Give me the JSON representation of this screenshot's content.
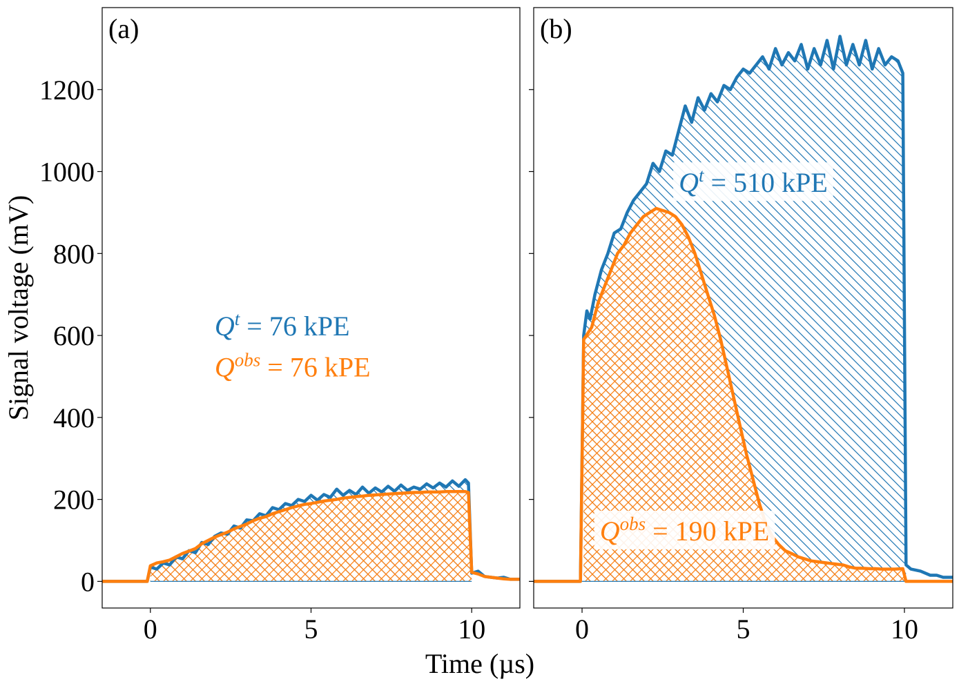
{
  "colors": {
    "true_signal": "#1f77b4",
    "observed_signal": "#ff7f0e",
    "axis": "#000000"
  },
  "figure": {
    "shared_xlabel": "Time (µs)",
    "shared_ylabel": "Signal voltage (mV)"
  },
  "chart_data": [
    {
      "type": "line",
      "panel_label": "(a)",
      "xlim": [
        -1.5,
        11.5
      ],
      "ylim": [
        -65,
        1400
      ],
      "xticks": [
        0,
        5,
        10
      ],
      "yticks": [
        0,
        200,
        400,
        600,
        800,
        1000,
        1200
      ],
      "ytick_labels_visible": true,
      "annotations": [
        {
          "prefix": "Q",
          "superscript": "t",
          "text": " = 76 kPE",
          "color": "#1f77b4",
          "x": 2.0,
          "y": 600,
          "box": false
        },
        {
          "prefix": "Q",
          "superscript": "obs",
          "text": " = 76 kPE",
          "color": "#ff7f0e",
          "x": 2.0,
          "y": 500,
          "box": false
        }
      ],
      "series": [
        {
          "name": "Q^t",
          "color": "#1f77b4",
          "hatch": "\\\\",
          "x": [
            -1.5,
            -0.1,
            0,
            0.2,
            0.4,
            0.6,
            0.8,
            1,
            1.2,
            1.4,
            1.6,
            1.8,
            2,
            2.2,
            2.4,
            2.6,
            2.8,
            3,
            3.2,
            3.4,
            3.6,
            3.8,
            4,
            4.2,
            4.4,
            4.6,
            4.8,
            5,
            5.2,
            5.4,
            5.6,
            5.8,
            6,
            6.2,
            6.4,
            6.6,
            6.8,
            7,
            7.2,
            7.4,
            7.6,
            7.8,
            8,
            8.2,
            8.4,
            8.6,
            8.8,
            9,
            9.2,
            9.4,
            9.6,
            9.8,
            9.9,
            10,
            10.2,
            10.4,
            10.6,
            10.8,
            11,
            11.2,
            11.5
          ],
          "y": [
            0,
            0,
            35,
            30,
            45,
            40,
            60,
            55,
            75,
            70,
            95,
            90,
            110,
            118,
            115,
            135,
            130,
            150,
            148,
            165,
            160,
            180,
            175,
            190,
            185,
            200,
            195,
            210,
            198,
            212,
            205,
            225,
            210,
            222,
            212,
            230,
            215,
            228,
            218,
            232,
            220,
            235,
            222,
            230,
            225,
            238,
            228,
            240,
            230,
            245,
            232,
            248,
            240,
            20,
            25,
            12,
            10,
            8,
            10,
            5,
            5
          ]
        },
        {
          "name": "Q^obs",
          "color": "#ff7f0e",
          "hatch": "xx",
          "x": [
            -1.5,
            -0.1,
            0,
            0.2,
            0.4,
            0.6,
            0.8,
            1,
            1.2,
            1.4,
            1.6,
            1.8,
            2,
            2.2,
            2.4,
            2.6,
            2.8,
            3,
            3.2,
            3.4,
            3.6,
            3.8,
            4,
            4.2,
            4.4,
            4.6,
            4.8,
            5,
            5.2,
            5.4,
            5.6,
            5.8,
            6,
            6.2,
            6.4,
            6.6,
            6.8,
            7,
            7.2,
            7.4,
            7.6,
            7.8,
            8,
            8.2,
            8.4,
            8.6,
            8.8,
            9,
            9.2,
            9.4,
            9.6,
            9.8,
            9.9,
            10,
            10.2,
            10.4,
            10.6,
            10.8,
            11,
            11.2,
            11.5
          ],
          "y": [
            0,
            0,
            38,
            45,
            48,
            52,
            60,
            68,
            74,
            80,
            92,
            100,
            108,
            114,
            120,
            128,
            134,
            140,
            148,
            154,
            158,
            165,
            170,
            175,
            180,
            184,
            188,
            190,
            193,
            196,
            198,
            200,
            203,
            205,
            207,
            208,
            210,
            211,
            212,
            213,
            214,
            215,
            216,
            217,
            217,
            218,
            218,
            218,
            219,
            219,
            219,
            219,
            217,
            22,
            18,
            12,
            10,
            8,
            6,
            5,
            5
          ]
        }
      ]
    },
    {
      "type": "line",
      "panel_label": "(b)",
      "xlim": [
        -1.5,
        11.5
      ],
      "ylim": [
        -65,
        1400
      ],
      "xticks": [
        0,
        5,
        10
      ],
      "yticks": [
        0,
        200,
        400,
        600,
        800,
        1000,
        1200
      ],
      "ytick_labels_visible": false,
      "annotations": [
        {
          "prefix": "Q",
          "superscript": "t",
          "text": " = 510 kPE",
          "color": "#1f77b4",
          "x": 3.0,
          "y": 950,
          "box": true
        },
        {
          "prefix": "Q",
          "superscript": "obs",
          "text": " = 190 kPE",
          "color": "#ff7f0e",
          "x": 0.55,
          "y": 100,
          "box": true
        }
      ],
      "series": [
        {
          "name": "Q^t",
          "color": "#1f77b4",
          "hatch": "\\\\",
          "x": [
            -1.5,
            -0.05,
            0.05,
            0.15,
            0.25,
            0.4,
            0.6,
            0.8,
            1,
            1.2,
            1.4,
            1.6,
            1.8,
            2,
            2.2,
            2.4,
            2.6,
            2.8,
            3,
            3.2,
            3.4,
            3.6,
            3.8,
            4,
            4.2,
            4.4,
            4.6,
            4.8,
            5,
            5.2,
            5.4,
            5.6,
            5.8,
            6,
            6.2,
            6.4,
            6.6,
            6.8,
            7,
            7.2,
            7.4,
            7.6,
            7.8,
            8,
            8.2,
            8.4,
            8.6,
            8.8,
            9,
            9.2,
            9.4,
            9.6,
            9.8,
            9.95,
            10.05,
            10.2,
            10.5,
            10.8,
            11,
            11.2,
            11.5
          ],
          "y": [
            0,
            0,
            600,
            660,
            640,
            700,
            760,
            800,
            850,
            860,
            900,
            930,
            950,
            970,
            1020,
            1000,
            1050,
            1040,
            1100,
            1160,
            1120,
            1180,
            1150,
            1190,
            1170,
            1210,
            1200,
            1230,
            1250,
            1240,
            1260,
            1280,
            1250,
            1300,
            1260,
            1290,
            1270,
            1310,
            1250,
            1300,
            1260,
            1320,
            1250,
            1330,
            1260,
            1310,
            1260,
            1320,
            1250,
            1300,
            1260,
            1280,
            1270,
            1240,
            40,
            30,
            25,
            15,
            15,
            10,
            10
          ]
        },
        {
          "name": "Q^obs",
          "color": "#ff7f0e",
          "hatch": "xx",
          "x": [
            -1.5,
            -0.05,
            0.05,
            0.3,
            0.5,
            0.7,
            0.9,
            1.1,
            1.3,
            1.5,
            1.7,
            1.9,
            2.1,
            2.3,
            2.5,
            2.7,
            2.9,
            3.1,
            3.3,
            3.5,
            3.7,
            3.9,
            4.1,
            4.3,
            4.5,
            4.7,
            4.9,
            5.1,
            5.3,
            5.5,
            5.7,
            5.9,
            6.1,
            6.3,
            6.5,
            6.7,
            6.9,
            7.1,
            7.3,
            7.5,
            7.7,
            7.9,
            8.1,
            8.3,
            8.5,
            8.7,
            8.9,
            9.1,
            9.3,
            9.5,
            9.7,
            9.95,
            10.05,
            10.3,
            10.6,
            10.9,
            11.2,
            11.5
          ],
          "y": [
            0,
            0,
            590,
            620,
            680,
            720,
            760,
            800,
            820,
            850,
            870,
            890,
            900,
            910,
            905,
            900,
            890,
            870,
            840,
            800,
            750,
            700,
            650,
            590,
            520,
            450,
            380,
            310,
            250,
            190,
            140,
            110,
            90,
            75,
            68,
            60,
            55,
            50,
            48,
            46,
            44,
            42,
            40,
            35,
            32,
            32,
            31,
            31,
            30,
            30,
            30,
            31,
            0,
            0,
            0,
            0,
            0,
            0
          ]
        }
      ]
    }
  ]
}
